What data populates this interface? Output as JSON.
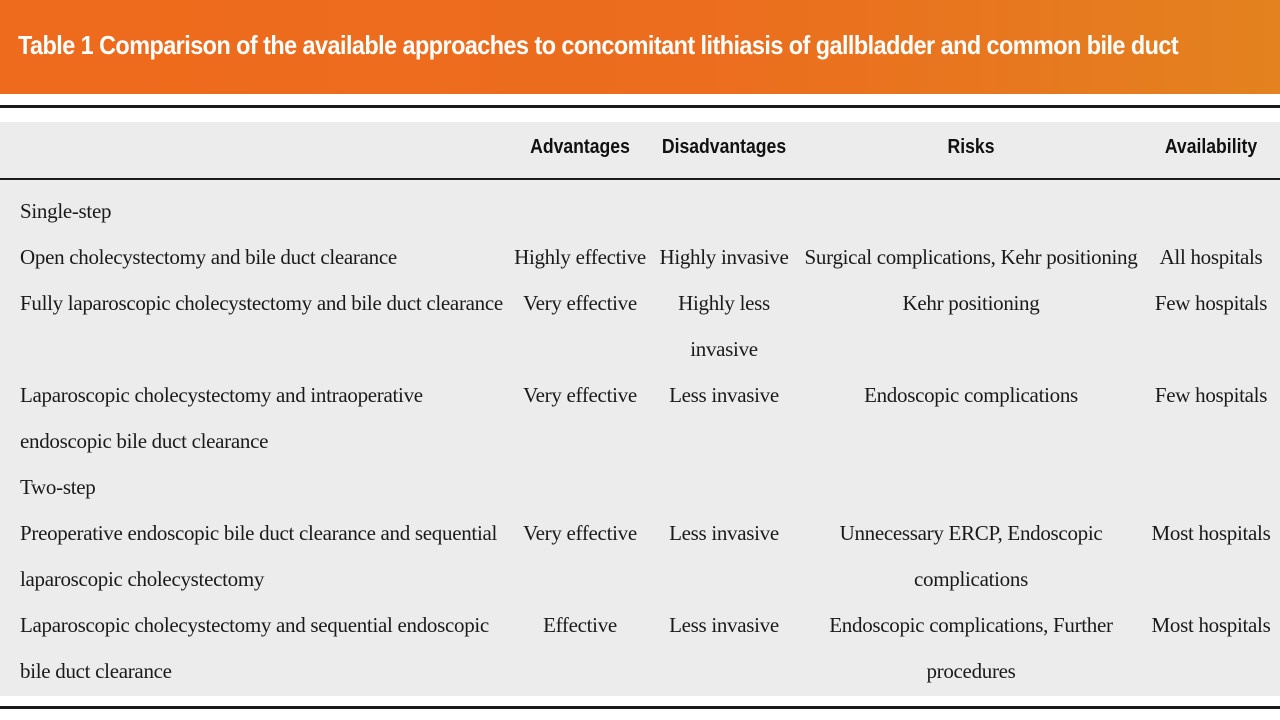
{
  "title": "Table 1  Comparison of the available approaches to concomitant lithiasis of gallbladder and common bile duct",
  "colors": {
    "banner": "#ec6d1e",
    "table_background": "#ececec",
    "rule": "#1a1a1a"
  },
  "headers": {
    "approach": "",
    "advantages": "Advantages",
    "disadvantages": "Disadvantages",
    "risks": "Risks",
    "availability": "Availability"
  },
  "sections": {
    "single_step": "Single-step",
    "two_step": "Two-step"
  },
  "rows": [
    {
      "approach": "Open cholecystectomy and bile duct clearance",
      "advantages": "Highly effective",
      "disadvantages": "Highly invasive",
      "risks": "Surgical complications, Kehr positioning",
      "availability": "All hospitals"
    },
    {
      "approach": "Fully laparoscopic cholecystectomy and bile duct clearance",
      "advantages": "Very effective",
      "disadvantages_line1": "Highly less",
      "disadvantages_line2": "invasive",
      "risks": "Kehr positioning",
      "availability": "Few hospitals"
    },
    {
      "approach_line1": "Laparoscopic cholecystectomy and intraoperative",
      "approach_line2": "endoscopic bile duct clearance",
      "advantages": "Very effective",
      "disadvantages": "Less invasive",
      "risks": "Endoscopic complications",
      "availability": "Few hospitals"
    },
    {
      "approach_line1": "Preoperative endoscopic bile duct clearance and sequential",
      "approach_line2": "laparoscopic cholecystectomy",
      "advantages": "Very effective",
      "disadvantages": "Less invasive",
      "risks_line1": "Unnecessary ERCP, Endoscopic",
      "risks_line2": "complications",
      "availability": "Most hospitals"
    },
    {
      "approach_line1": "Laparoscopic cholecystectomy and sequential endoscopic",
      "approach_line2": "bile duct clearance",
      "advantages": "Effective",
      "disadvantages": "Less invasive",
      "risks_line1": "Endoscopic complications, Further",
      "risks_line2": "procedures",
      "availability": "Most hospitals"
    }
  ]
}
